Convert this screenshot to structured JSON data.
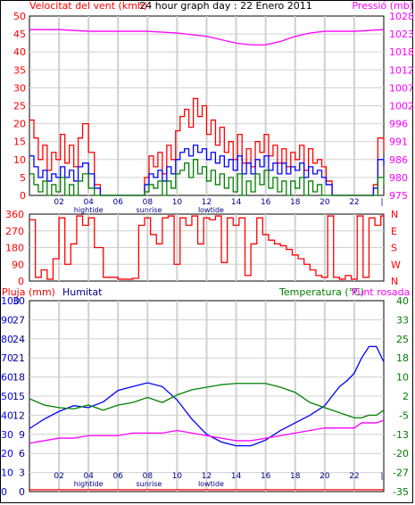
{
  "chart_data": [
    {
      "type": "line",
      "title": "24 hour graph day : 22 Enero 2011",
      "ylabel_left": "Velocitat del vent (kmh)",
      "ylabel_right": "Pressió (mb)",
      "x_ticks": [
        "02",
        "04",
        "06",
        "08",
        "10",
        "12",
        "14",
        "16",
        "18",
        "20",
        "22"
      ],
      "x_annotations": [
        "hightide",
        "sunrise",
        "lowtide"
      ],
      "ylim_left": [
        0,
        50
      ],
      "y_ticks_left": [
        0,
        5,
        10,
        15,
        20,
        25,
        30,
        35,
        40,
        45,
        50
      ],
      "ylim_right": [
        975,
        1028
      ],
      "y_ticks_right": [
        975,
        980,
        986,
        991,
        996,
        1002,
        1007,
        1012,
        1018,
        1023,
        1028
      ],
      "grid": true,
      "colors": {
        "gust": "#ff0000",
        "average": "#0000ff",
        "minimum": "#008000",
        "pressure": "#ff00ff"
      },
      "series": [
        {
          "name": "",
          "color": "#ff00ff",
          "axis": "right",
          "x": [
            0,
            2,
            4,
            6,
            8,
            10,
            12,
            13,
            14,
            15,
            16,
            17,
            18,
            19,
            20,
            22,
            24
          ],
          "y": [
            1024,
            1024,
            1023.5,
            1023.5,
            1023.5,
            1023,
            1022,
            1021,
            1020,
            1019.5,
            1019.5,
            1020.5,
            1022,
            1023,
            1023.5,
            1023.5,
            1024
          ]
        },
        {
          "name": "",
          "color": "#ff0000",
          "axis": "left",
          "x": [
            0,
            0.3,
            0.6,
            0.9,
            1.2,
            1.5,
            1.8,
            2.1,
            2.4,
            2.7,
            3.0,
            3.3,
            3.6,
            4.0,
            4.4,
            4.8,
            5.2,
            5.6,
            6.0,
            6.4,
            6.8,
            7.2,
            7.5,
            7.8,
            8.1,
            8.4,
            8.7,
            9.0,
            9.3,
            9.6,
            9.9,
            10.2,
            10.5,
            10.8,
            11.1,
            11.4,
            11.7,
            12.0,
            12.3,
            12.6,
            12.9,
            13.2,
            13.5,
            13.8,
            14.1,
            14.4,
            14.7,
            15.0,
            15.3,
            15.6,
            15.9,
            16.2,
            16.5,
            16.8,
            17.1,
            17.4,
            17.7,
            18.0,
            18.3,
            18.6,
            18.9,
            19.2,
            19.5,
            19.8,
            20.1,
            20.5,
            21,
            21.5,
            22,
            22.5,
            23,
            23.3,
            23.6,
            24
          ],
          "y": [
            21,
            16,
            10,
            14,
            7,
            12,
            10,
            17,
            9,
            14,
            8,
            16,
            20,
            12,
            3,
            0,
            0,
            0,
            0,
            0,
            0,
            0,
            0,
            5,
            11,
            8,
            12,
            6,
            14,
            10,
            18,
            22,
            24,
            19,
            27,
            22,
            25,
            17,
            21,
            14,
            19,
            12,
            15,
            10,
            17,
            9,
            13,
            8,
            15,
            12,
            17,
            11,
            14,
            9,
            13,
            8,
            12,
            10,
            14,
            7,
            13,
            9,
            10,
            8,
            4,
            0,
            0,
            0,
            0,
            0,
            0,
            3,
            16,
            12
          ]
        },
        {
          "name": "",
          "color": "#0000ff",
          "axis": "left",
          "x": [
            0,
            0.3,
            0.6,
            0.9,
            1.2,
            1.5,
            1.8,
            2.1,
            2.4,
            2.7,
            3.0,
            3.3,
            3.6,
            4.0,
            4.4,
            4.8,
            5.2,
            5.6,
            6.0,
            6.4,
            6.8,
            7.2,
            7.5,
            7.8,
            8.1,
            8.4,
            8.7,
            9.0,
            9.3,
            9.6,
            9.9,
            10.2,
            10.5,
            10.8,
            11.1,
            11.4,
            11.7,
            12.0,
            12.3,
            12.6,
            12.9,
            13.2,
            13.5,
            13.8,
            14.1,
            14.4,
            14.7,
            15.0,
            15.3,
            15.6,
            15.9,
            16.2,
            16.5,
            16.8,
            17.1,
            17.4,
            17.7,
            18.0,
            18.3,
            18.6,
            18.9,
            19.2,
            19.5,
            19.8,
            20.1,
            20.5,
            21,
            21.5,
            22,
            22.5,
            23,
            23.3,
            23.6,
            24
          ],
          "y": [
            11,
            8,
            5,
            7,
            4,
            6,
            5,
            8,
            5,
            7,
            4,
            8,
            9,
            6,
            2,
            0,
            0,
            0,
            0,
            0,
            0,
            0,
            0,
            3,
            6,
            5,
            7,
            4,
            8,
            6,
            10,
            12,
            13,
            11,
            14,
            12,
            13,
            10,
            12,
            9,
            11,
            8,
            10,
            7,
            11,
            6,
            9,
            6,
            10,
            8,
            11,
            7,
            9,
            6,
            9,
            6,
            8,
            7,
            9,
            5,
            8,
            6,
            7,
            5,
            3,
            0,
            0,
            0,
            0,
            0,
            0,
            2,
            10,
            8
          ]
        },
        {
          "name": "",
          "color": "#008000",
          "axis": "left",
          "x": [
            0,
            0.3,
            0.6,
            0.9,
            1.2,
            1.5,
            1.8,
            2.1,
            2.4,
            2.7,
            3.0,
            3.3,
            3.6,
            4.0,
            4.4,
            4.8,
            5.2,
            5.6,
            6.0,
            6.4,
            6.8,
            7.2,
            7.5,
            7.8,
            8.1,
            8.4,
            8.7,
            9.0,
            9.3,
            9.6,
            9.9,
            10.2,
            10.5,
            10.8,
            11.1,
            11.4,
            11.7,
            12.0,
            12.3,
            12.6,
            12.9,
            13.2,
            13.5,
            13.8,
            14.1,
            14.4,
            14.7,
            15.0,
            15.3,
            15.6,
            15.9,
            16.2,
            16.5,
            16.8,
            17.1,
            17.4,
            17.7,
            18.0,
            18.3,
            18.6,
            18.9,
            19.2,
            19.5,
            19.8,
            20.1,
            20.5,
            21,
            21.5,
            22,
            22.5,
            23,
            23.3,
            23.6,
            24
          ],
          "y": [
            6,
            3,
            1,
            4,
            0,
            3,
            1,
            5,
            0,
            3,
            0,
            4,
            6,
            2,
            0,
            0,
            0,
            0,
            0,
            0,
            0,
            0,
            0,
            1,
            3,
            2,
            4,
            0,
            4,
            2,
            6,
            7,
            9,
            5,
            10,
            6,
            8,
            4,
            7,
            3,
            6,
            2,
            5,
            1,
            6,
            0,
            4,
            1,
            6,
            3,
            7,
            2,
            5,
            1,
            4,
            0,
            4,
            2,
            5,
            0,
            4,
            1,
            3,
            0,
            0,
            0,
            0,
            0,
            0,
            0,
            0,
            0,
            5,
            3
          ]
        }
      ]
    },
    {
      "type": "line",
      "title": "",
      "ylim_left": [
        0,
        360
      ],
      "y_ticks_left": [
        0,
        90,
        180,
        270,
        360
      ],
      "y_ticks_right": [
        "N",
        "W",
        "S",
        "E",
        "N"
      ],
      "grid": true,
      "colors": {
        "direction": "#ff0000"
      },
      "series": [
        {
          "name": "",
          "color": "#ff0000",
          "x": [
            0,
            0.4,
            0.8,
            1.2,
            1.6,
            2.0,
            2.4,
            2.8,
            3.2,
            3.6,
            4.0,
            4.4,
            5,
            6,
            7,
            7.4,
            7.8,
            8.2,
            8.6,
            9.0,
            9.4,
            9.8,
            10.2,
            10.6,
            11.0,
            11.4,
            11.8,
            12.2,
            12.6,
            13.0,
            13.4,
            13.8,
            14.2,
            14.6,
            15.0,
            15.4,
            15.8,
            16.2,
            16.6,
            17.0,
            17.4,
            17.8,
            18.2,
            18.6,
            19.0,
            19.4,
            19.8,
            20.2,
            20.6,
            21.0,
            21.4,
            21.8,
            22.2,
            22.6,
            23.0,
            23.4,
            23.8,
            24
          ],
          "y": [
            330,
            20,
            60,
            10,
            120,
            340,
            90,
            200,
            350,
            300,
            340,
            180,
            20,
            10,
            15,
            300,
            340,
            250,
            200,
            340,
            350,
            90,
            340,
            300,
            350,
            200,
            340,
            330,
            350,
            100,
            340,
            300,
            340,
            30,
            200,
            340,
            250,
            220,
            200,
            190,
            170,
            140,
            120,
            90,
            60,
            30,
            20,
            350,
            20,
            10,
            30,
            10,
            350,
            20,
            340,
            300,
            350,
            340
          ]
        }
      ]
    },
    {
      "type": "line",
      "title": "",
      "ylabel_left_outer": "Pluja (mm)",
      "ylabel_left_inner": "Humitat",
      "ylabel_right": "Temperatura (°C)",
      "ylabel_right_extra": "Punt rosada",
      "x_ticks": [
        "02",
        "04",
        "06",
        "08",
        "10",
        "12",
        "14",
        "16",
        "18",
        "20",
        "22"
      ],
      "x_annotations": [
        "hightide",
        "sunrise",
        "lowtide"
      ],
      "ylim_humidity": [
        0,
        100
      ],
      "y_ticks_rain": [
        0,
        3,
        6,
        9,
        12,
        15,
        18,
        21,
        24,
        27,
        30
      ],
      "y_ticks_humidity": [
        0,
        10,
        20,
        30,
        40,
        50,
        60,
        70,
        80,
        90,
        100
      ],
      "ylim_temp": [
        -35,
        40
      ],
      "y_ticks_temp": [
        -35,
        -27,
        -20,
        -13,
        -5,
        2,
        10,
        18,
        25,
        33,
        40
      ],
      "grid": true,
      "colors": {
        "rain": "#ff0000",
        "humidity": "#0000ff",
        "temperature": "#008000",
        "dewpoint": "#ff00ff"
      },
      "series": [
        {
          "name": "",
          "color": "#ff0000",
          "axis": "rain",
          "x": [
            0,
            24
          ],
          "y": [
            0.3,
            0.3
          ]
        },
        {
          "name": "",
          "color": "#0000ff",
          "axis": "humidity",
          "x": [
            0,
            1,
            2,
            3,
            4,
            5,
            6,
            7,
            8,
            9,
            10,
            11,
            12,
            13,
            14,
            15,
            16,
            17,
            18,
            19,
            20,
            21,
            21.5,
            22,
            22.5,
            23,
            23.5,
            24
          ],
          "y": [
            33,
            38,
            42,
            45,
            44,
            47,
            53,
            55,
            57,
            55,
            48,
            38,
            30,
            26,
            24,
            24,
            27,
            32,
            36,
            40,
            45,
            55,
            58,
            62,
            70,
            76,
            76,
            68
          ]
        },
        {
          "name": "",
          "color": "#008000",
          "axis": "temp",
          "x": [
            0,
            1,
            2,
            3,
            4,
            5,
            6,
            7,
            8,
            9,
            10,
            11,
            12,
            13,
            14,
            15,
            16,
            17,
            18,
            19,
            20,
            21,
            21.5,
            22,
            22.5,
            23,
            23.5,
            24
          ],
          "y": [
            1.5,
            -1,
            -2,
            -2.5,
            -1,
            -3,
            -1,
            0,
            2,
            0,
            3,
            5,
            6,
            7,
            7.5,
            7.5,
            7.5,
            6,
            4,
            0,
            -2,
            -4,
            -5,
            -6,
            -6,
            -5,
            -5,
            -3
          ]
        },
        {
          "name": "",
          "color": "#ff00ff",
          "axis": "temp",
          "x": [
            0,
            1,
            2,
            3,
            4,
            5,
            6,
            7,
            8,
            9,
            10,
            11,
            12,
            13,
            14,
            15,
            16,
            17,
            18,
            19,
            20,
            21,
            22,
            22.5,
            23,
            23.5,
            24
          ],
          "y": [
            -16,
            -15,
            -14,
            -14,
            -13,
            -13,
            -13,
            -12,
            -12,
            -12,
            -11,
            -12,
            -13,
            -14,
            -15,
            -15,
            -14,
            -13,
            -12,
            -11,
            -10,
            -10,
            -10,
            -8,
            -8,
            -8,
            -7
          ]
        }
      ]
    }
  ]
}
